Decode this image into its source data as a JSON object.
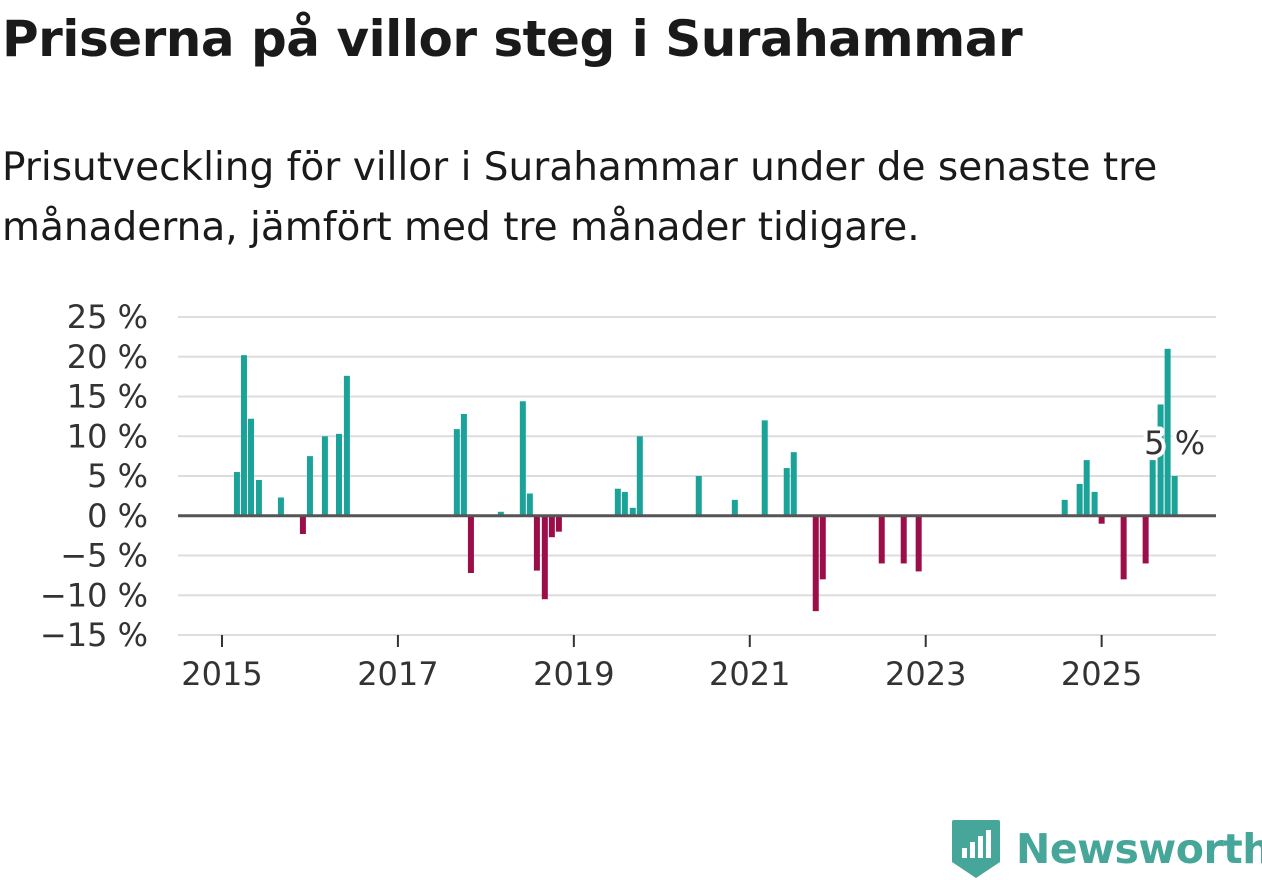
{
  "header": {
    "title": "Priserna på villor steg i Surahammar",
    "subtitle": "Prisutveckling för villor i Surahammar under de senaste tre månaderna, jämfört med tre månader tidigare."
  },
  "brand": {
    "name": "Newsworthy"
  },
  "colors": {
    "positive": "#1ba39a",
    "negative": "#9b0e4a",
    "grid": "#dddddd",
    "zero": "#555555",
    "brand": "#45a699"
  },
  "chart_data": {
    "type": "bar",
    "title": "Priserna på villor steg i Surahammar",
    "xlabel": "",
    "ylabel": "",
    "ylim": [
      -15,
      25
    ],
    "xlim": [
      2014.5,
      2026.3
    ],
    "yticks": [
      25,
      20,
      15,
      10,
      5,
      0,
      -5,
      -10,
      -15
    ],
    "ytick_labels": [
      "25 %",
      "20 %",
      "15 %",
      "10 %",
      "5 %",
      "0 %",
      "−5 %",
      "−10 %",
      "−15 %"
    ],
    "xticks": [
      2015,
      2017,
      2019,
      2021,
      2023,
      2025
    ],
    "xtick_labels": [
      "2015",
      "2017",
      "2019",
      "2021",
      "2023",
      "2025"
    ],
    "annotation": {
      "text": "5 %",
      "x": 2025.83,
      "y": 5
    },
    "series": [
      {
        "name": "Prisutveckling",
        "points": [
          {
            "x": 2015.17,
            "y": 5.5
          },
          {
            "x": 2015.25,
            "y": 20.2
          },
          {
            "x": 2015.33,
            "y": 12.2
          },
          {
            "x": 2015.42,
            "y": 4.5
          },
          {
            "x": 2015.67,
            "y": 2.3
          },
          {
            "x": 2015.92,
            "y": -2.3
          },
          {
            "x": 2016.0,
            "y": 7.5
          },
          {
            "x": 2016.17,
            "y": 10.0
          },
          {
            "x": 2016.33,
            "y": 10.3
          },
          {
            "x": 2016.42,
            "y": 17.6
          },
          {
            "x": 2017.67,
            "y": 10.9
          },
          {
            "x": 2017.75,
            "y": 12.8
          },
          {
            "x": 2017.83,
            "y": -7.2
          },
          {
            "x": 2018.17,
            "y": 0.5
          },
          {
            "x": 2018.42,
            "y": 14.4
          },
          {
            "x": 2018.5,
            "y": 2.8
          },
          {
            "x": 2018.58,
            "y": -6.9
          },
          {
            "x": 2018.67,
            "y": -10.5
          },
          {
            "x": 2018.75,
            "y": -2.7
          },
          {
            "x": 2018.83,
            "y": -2.0
          },
          {
            "x": 2019.5,
            "y": 3.4
          },
          {
            "x": 2019.58,
            "y": 3.0
          },
          {
            "x": 2019.67,
            "y": 1.0
          },
          {
            "x": 2019.75,
            "y": 10.0
          },
          {
            "x": 2020.42,
            "y": 5.0
          },
          {
            "x": 2020.83,
            "y": 2.0
          },
          {
            "x": 2021.17,
            "y": 12.0
          },
          {
            "x": 2021.42,
            "y": 6.0
          },
          {
            "x": 2021.5,
            "y": 8.0
          },
          {
            "x": 2021.75,
            "y": -12.0
          },
          {
            "x": 2021.83,
            "y": -8.0
          },
          {
            "x": 2022.5,
            "y": -6.0
          },
          {
            "x": 2022.75,
            "y": -6.0
          },
          {
            "x": 2022.92,
            "y": -7.0
          },
          {
            "x": 2024.58,
            "y": 2.0
          },
          {
            "x": 2024.75,
            "y": 4.0
          },
          {
            "x": 2024.83,
            "y": 7.0
          },
          {
            "x": 2024.92,
            "y": 3.0
          },
          {
            "x": 2025.0,
            "y": -1.0
          },
          {
            "x": 2025.25,
            "y": -8.0
          },
          {
            "x": 2025.5,
            "y": -6.0
          },
          {
            "x": 2025.58,
            "y": 7.0
          },
          {
            "x": 2025.67,
            "y": 14.0
          },
          {
            "x": 2025.75,
            "y": 21.0
          },
          {
            "x": 2025.83,
            "y": 5.0
          }
        ]
      }
    ]
  }
}
